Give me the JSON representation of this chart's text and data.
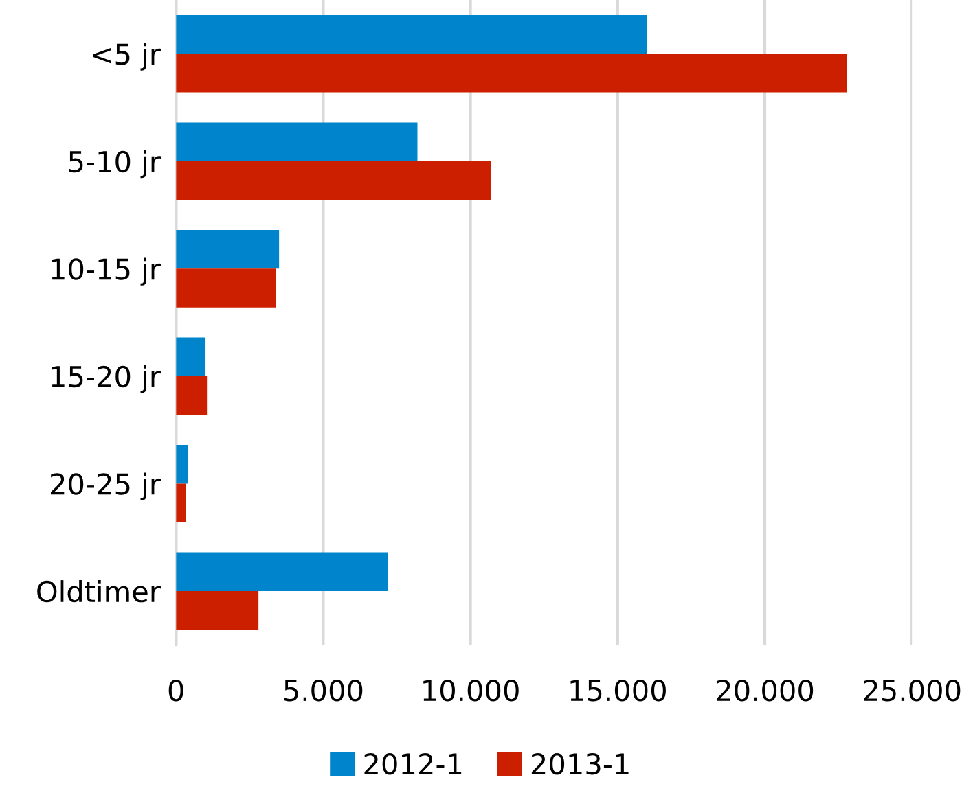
{
  "chart_data": {
    "type": "bar",
    "orientation": "horizontal",
    "categories": [
      "<5 jr",
      "5-10 jr",
      "10-15 jr",
      "15-20 jr",
      "20-25 jr",
      "Oldtimer"
    ],
    "series": [
      {
        "name": "2012-1",
        "color": "#0084cc",
        "values": [
          16000,
          8200,
          3500,
          1000,
          400,
          7200
        ]
      },
      {
        "name": "2013-1",
        "color": "#cc1f00",
        "values": [
          22800,
          10700,
          3400,
          1050,
          330,
          2800
        ]
      }
    ],
    "xlim": [
      0,
      25000
    ],
    "xticks": [
      0,
      {
        "value": 5000,
        "label": "5.000"
      },
      {
        "value": 10000,
        "label": "10.000"
      },
      {
        "value": 15000,
        "label": "15.000"
      },
      {
        "value": 20000,
        "label": "20.000"
      },
      {
        "value": 25000,
        "label": "25.000"
      }
    ],
    "grid": "x",
    "legend": "bottom"
  }
}
